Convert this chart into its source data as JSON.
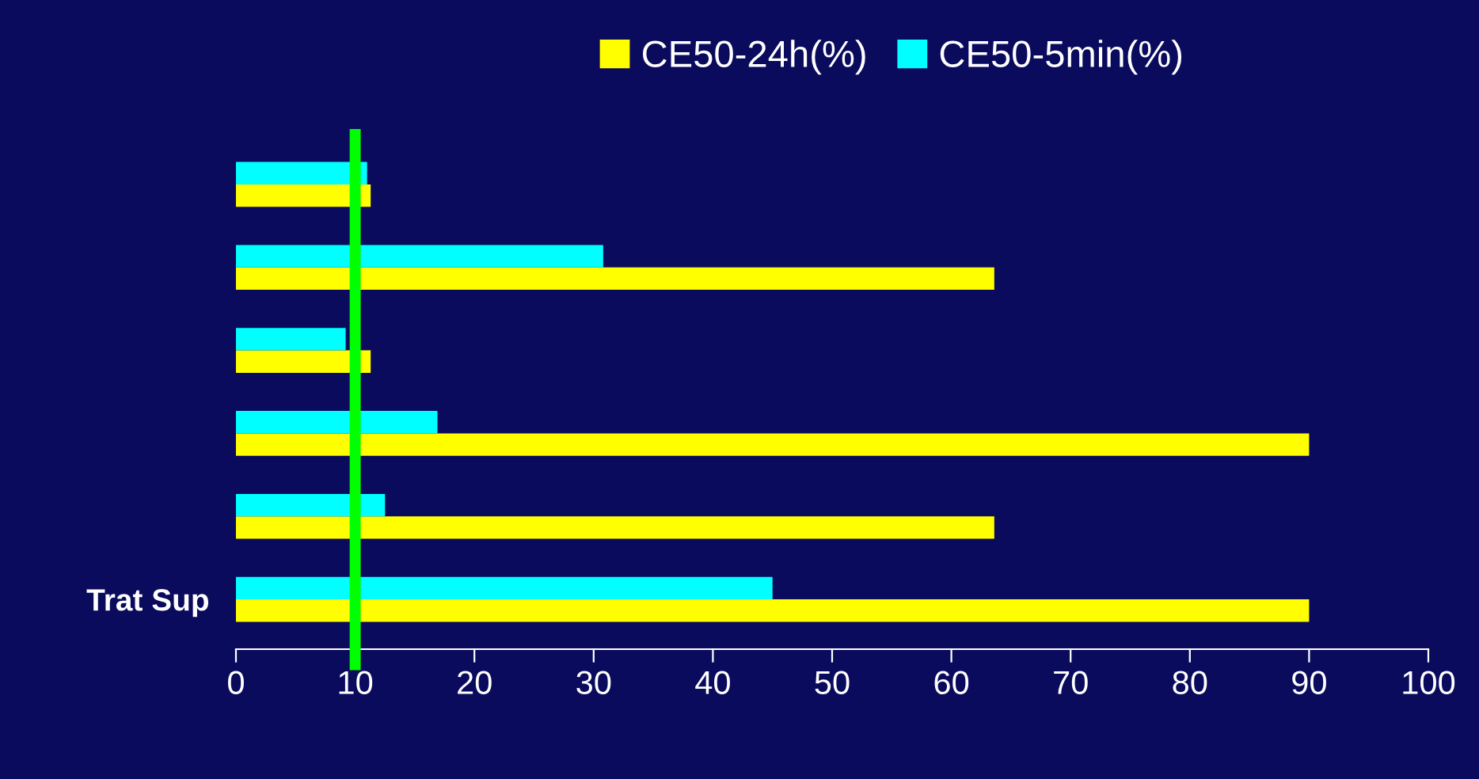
{
  "chart_data": {
    "type": "bar",
    "orientation": "horizontal",
    "categories": [
      null,
      null,
      null,
      null,
      null,
      "Trat Sup"
    ],
    "series": [
      {
        "name": "CE50-24h(%)",
        "color": "#ffff00",
        "values": [
          11.3,
          63.6,
          11.3,
          90,
          63.6,
          90
        ]
      },
      {
        "name": "CE50-5min(%)",
        "color": "#00ffff",
        "values": [
          11,
          30.8,
          9.2,
          16.9,
          12.5,
          45
        ]
      }
    ],
    "xlim": [
      0,
      100
    ],
    "xticks": [
      0,
      10,
      20,
      30,
      40,
      50,
      60,
      70,
      80,
      90,
      100
    ],
    "ref_lines": [
      {
        "axis": "x",
        "value": 10,
        "color": "#00ff00"
      }
    ],
    "grid": false,
    "legend": "top"
  }
}
